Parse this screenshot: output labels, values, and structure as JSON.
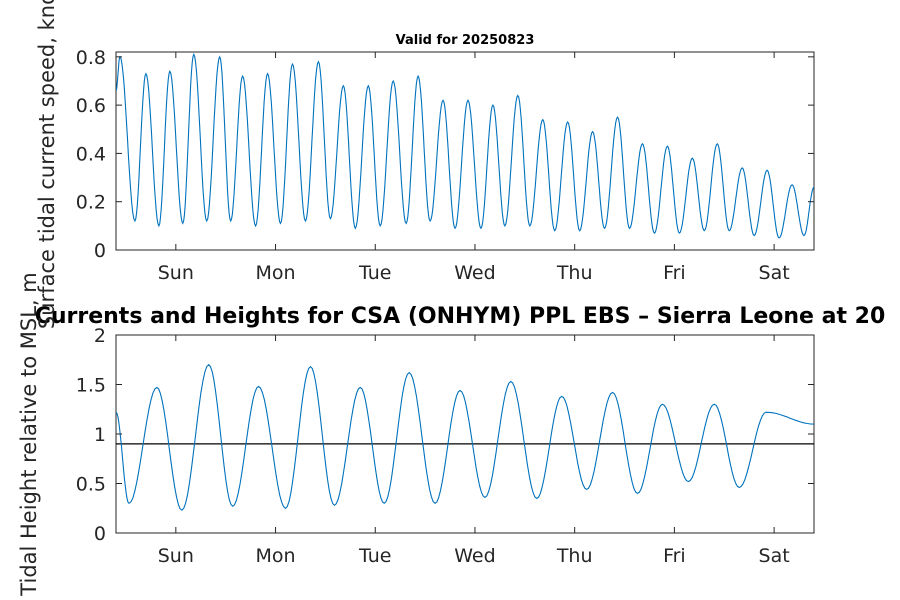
{
  "chart_data": [
    {
      "type": "line",
      "title": "Valid for 20250823",
      "ylabel": "Surface tidal current speed, knots",
      "xlim": [
        0,
        7
      ],
      "ylim": [
        0,
        0.82
      ],
      "xticks": [
        0.6,
        1.6,
        2.6,
        3.6,
        4.6,
        5.6,
        6.6
      ],
      "xticklabels": [
        "Sun",
        "Mon",
        "Tue",
        "Wed",
        "Thu",
        "Fri",
        "Sat"
      ],
      "yticks": [
        0,
        0.2,
        0.4,
        0.6,
        0.8
      ],
      "yticklabels": [
        "0",
        "0.2",
        "0.4",
        "0.6",
        "0.8"
      ],
      "color": "#0072BD",
      "series": [
        {
          "x": [
            0.0,
            0.04,
            0.19,
            0.3,
            0.43,
            0.54,
            0.67,
            0.78,
            0.91,
            1.04,
            1.15,
            1.27,
            1.4,
            1.52,
            1.65,
            1.77,
            1.9,
            2.03,
            2.15,
            2.28,
            2.4,
            2.53,
            2.65,
            2.78,
            2.91,
            3.03,
            3.15,
            3.28,
            3.4,
            3.53,
            3.66,
            3.78,
            3.9,
            4.03,
            4.15,
            4.28,
            4.4,
            4.53,
            4.65,
            4.78,
            4.9,
            5.03,
            5.15,
            5.28,
            5.4,
            5.53,
            5.65,
            5.78,
            5.9,
            6.03,
            6.15,
            6.28,
            6.4,
            6.53,
            6.65,
            6.78,
            6.9,
            7.0
          ],
          "y": [
            0.66,
            0.8,
            0.12,
            0.73,
            0.1,
            0.74,
            0.11,
            0.81,
            0.12,
            0.8,
            0.12,
            0.72,
            0.1,
            0.73,
            0.11,
            0.77,
            0.12,
            0.78,
            0.13,
            0.68,
            0.09,
            0.68,
            0.1,
            0.7,
            0.11,
            0.72,
            0.12,
            0.62,
            0.09,
            0.62,
            0.09,
            0.6,
            0.1,
            0.64,
            0.1,
            0.54,
            0.08,
            0.53,
            0.08,
            0.49,
            0.09,
            0.55,
            0.09,
            0.44,
            0.07,
            0.43,
            0.07,
            0.38,
            0.08,
            0.44,
            0.08,
            0.34,
            0.06,
            0.33,
            0.05,
            0.27,
            0.06,
            0.26
          ]
        }
      ]
    },
    {
      "type": "line",
      "title": "Currents and Heights for CSA (ONHYM) PPL EBS  – Sierra Leone at 20",
      "ylabel": "Tidal Height relative to MSL, m",
      "xlim": [
        0,
        7
      ],
      "ylim": [
        0,
        2
      ],
      "xticks": [
        0.6,
        1.6,
        2.6,
        3.6,
        4.6,
        5.6,
        6.6
      ],
      "xticklabels": [
        "Sun",
        "Mon",
        "Tue",
        "Wed",
        "Thu",
        "Fri",
        "Sat"
      ],
      "yticks": [
        0,
        0.5,
        1,
        1.5,
        2
      ],
      "yticklabels": [
        "0",
        "0.5",
        "1",
        "1.5",
        "2"
      ],
      "color": "#0072BD",
      "reference_line": {
        "y": 0.9,
        "color": "#000000"
      },
      "series": [
        {
          "x": [
            0.0,
            0.13,
            0.41,
            0.66,
            0.93,
            1.17,
            1.43,
            1.7,
            1.95,
            2.19,
            2.45,
            2.69,
            2.94,
            3.2,
            3.45,
            3.7,
            3.96,
            4.22,
            4.47,
            4.72,
            4.98,
            5.23,
            5.48,
            5.74,
            6.0,
            6.25,
            6.52,
            7.0
          ],
          "y": [
            1.22,
            0.3,
            1.47,
            0.23,
            1.7,
            0.27,
            1.48,
            0.25,
            1.68,
            0.28,
            1.47,
            0.3,
            1.62,
            0.3,
            1.44,
            0.36,
            1.53,
            0.35,
            1.38,
            0.44,
            1.42,
            0.4,
            1.3,
            0.52,
            1.3,
            0.46,
            1.22,
            1.1
          ]
        }
      ]
    }
  ]
}
